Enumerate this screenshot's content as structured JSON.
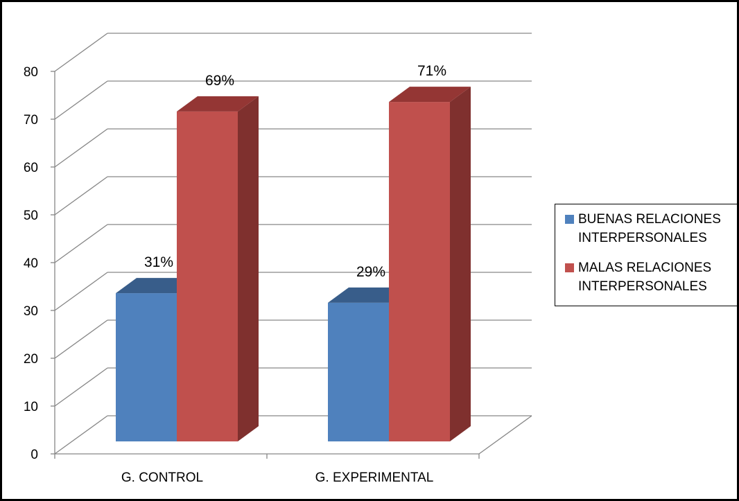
{
  "chart_data": {
    "type": "bar",
    "title": "",
    "xlabel": "",
    "ylabel": "",
    "categories": [
      "G. CONTROL",
      "G. EXPERIMENTAL"
    ],
    "series": [
      {
        "name": "BUENAS RELACIONES INTERPERSONALES",
        "name_lines": [
          "BUENAS RELACIONES",
          "INTERPERSONALES"
        ],
        "values": [
          31,
          29
        ],
        "data_labels": [
          "31%",
          "29%"
        ],
        "color": "#4F81BD",
        "top_color": "#385D8A",
        "side_color": "#2E4C73"
      },
      {
        "name": "MALAS RELACIONES INTERPERSONALES",
        "name_lines": [
          "MALAS RELACIONES",
          "INTERPERSONALES"
        ],
        "values": [
          69,
          71
        ],
        "data_labels": [
          "69%",
          "71%"
        ],
        "color": "#C0504D",
        "top_color": "#943634",
        "side_color": "#7F302E"
      }
    ],
    "yticks": [
      "0",
      "10",
      "20",
      "30",
      "40",
      "50",
      "60",
      "70",
      "80"
    ],
    "ylim": [
      0,
      80
    ],
    "grid": true,
    "style": "3d-column",
    "legend_position": "right"
  }
}
